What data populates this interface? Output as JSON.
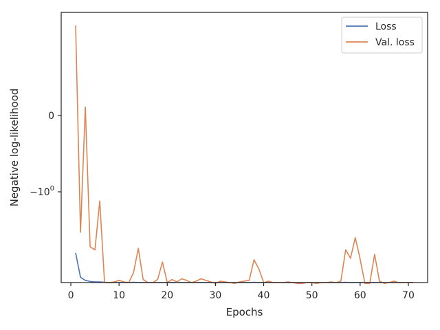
{
  "chart_data": {
    "type": "line",
    "xlabel": "Epochs",
    "ylabel": "Negative log-likelihood",
    "yscale": "symlog",
    "xlim": [
      -2,
      74
    ],
    "x_ticks": [
      0,
      10,
      20,
      30,
      40,
      50,
      60,
      70
    ],
    "y_ticks": [
      {
        "value": 0,
        "label": "0"
      },
      {
        "value": -1,
        "label": "−10",
        "exp": "0"
      }
    ],
    "grid": false,
    "legend_position": "top-right",
    "series": [
      {
        "name": "Loss",
        "color": "#4c72b0",
        "x": [
          1,
          2,
          3,
          4,
          5,
          6,
          7,
          8,
          9,
          10,
          11,
          12,
          13,
          14,
          15,
          16,
          17,
          18,
          19,
          20,
          21,
          22,
          23,
          24,
          25,
          26,
          27,
          28,
          29,
          30,
          31,
          32,
          33,
          34,
          35,
          36,
          37,
          38,
          39,
          40,
          41,
          42,
          43,
          44,
          45,
          46,
          47,
          48,
          49,
          50,
          51,
          52,
          53,
          54,
          55,
          56,
          57,
          58,
          59,
          60,
          61,
          62,
          63,
          64,
          65,
          66,
          67,
          68,
          69,
          70,
          71
        ],
        "y": [
          -1.8,
          -2.12,
          -2.16,
          -2.175,
          -2.18,
          -2.18,
          -2.185,
          -2.19,
          -2.19,
          -2.19,
          -2.19,
          -2.19,
          -2.185,
          -2.19,
          -2.19,
          -2.19,
          -2.19,
          -2.19,
          -2.19,
          -2.19,
          -2.19,
          -2.185,
          -2.19,
          -2.19,
          -2.19,
          -2.19,
          -2.19,
          -2.19,
          -2.19,
          -2.19,
          -2.19,
          -2.19,
          -2.19,
          -2.19,
          -2.19,
          -2.19,
          -2.19,
          -2.185,
          -2.19,
          -2.19,
          -2.19,
          -2.19,
          -2.19,
          -2.19,
          -2.19,
          -2.19,
          -2.19,
          -2.19,
          -2.19,
          -2.19,
          -2.19,
          -2.19,
          -2.19,
          -2.19,
          -2.19,
          -2.19,
          -2.185,
          -2.19,
          -2.19,
          -2.19,
          -2.19,
          -2.19,
          -2.19,
          -2.19,
          -2.19,
          -2.19,
          -2.19,
          -2.19,
          -2.19,
          -2.19,
          -2.19
        ]
      },
      {
        "name": "Val. loss",
        "color": "#dd8452",
        "x": [
          1,
          2,
          3,
          4,
          5,
          6,
          7,
          8,
          9,
          10,
          11,
          12,
          13,
          14,
          15,
          16,
          17,
          18,
          19,
          20,
          21,
          22,
          23,
          24,
          25,
          26,
          27,
          28,
          29,
          30,
          31,
          32,
          33,
          34,
          35,
          36,
          37,
          38,
          39,
          40,
          41,
          42,
          43,
          44,
          45,
          46,
          47,
          48,
          49,
          50,
          51,
          52,
          53,
          54,
          55,
          56,
          57,
          58,
          59,
          60,
          61,
          62,
          63,
          64,
          65,
          66,
          67,
          68,
          69,
          70,
          71
        ],
        "y": [
          1.18,
          -1.53,
          0.11,
          -1.72,
          -1.76,
          -1.12,
          -2.19,
          -2.19,
          -2.18,
          -2.16,
          -2.18,
          -2.19,
          -2.06,
          -1.74,
          -2.15,
          -2.19,
          -2.19,
          -2.15,
          -1.92,
          -2.19,
          -2.15,
          -2.18,
          -2.14,
          -2.16,
          -2.19,
          -2.17,
          -2.14,
          -2.16,
          -2.18,
          -2.2,
          -2.17,
          -2.18,
          -2.19,
          -2.2,
          -2.18,
          -2.17,
          -2.16,
          -1.89,
          -2.01,
          -2.19,
          -2.17,
          -2.19,
          -2.19,
          -2.19,
          -2.18,
          -2.19,
          -2.2,
          -2.2,
          -2.19,
          -2.19,
          -2.2,
          -2.19,
          -2.19,
          -2.18,
          -2.19,
          -2.17,
          -1.76,
          -1.87,
          -1.6,
          -1.88,
          -2.2,
          -2.2,
          -1.82,
          -2.17,
          -2.2,
          -2.19,
          -2.17,
          -2.19,
          -2.19,
          -2.19,
          -2.19
        ]
      }
    ]
  }
}
